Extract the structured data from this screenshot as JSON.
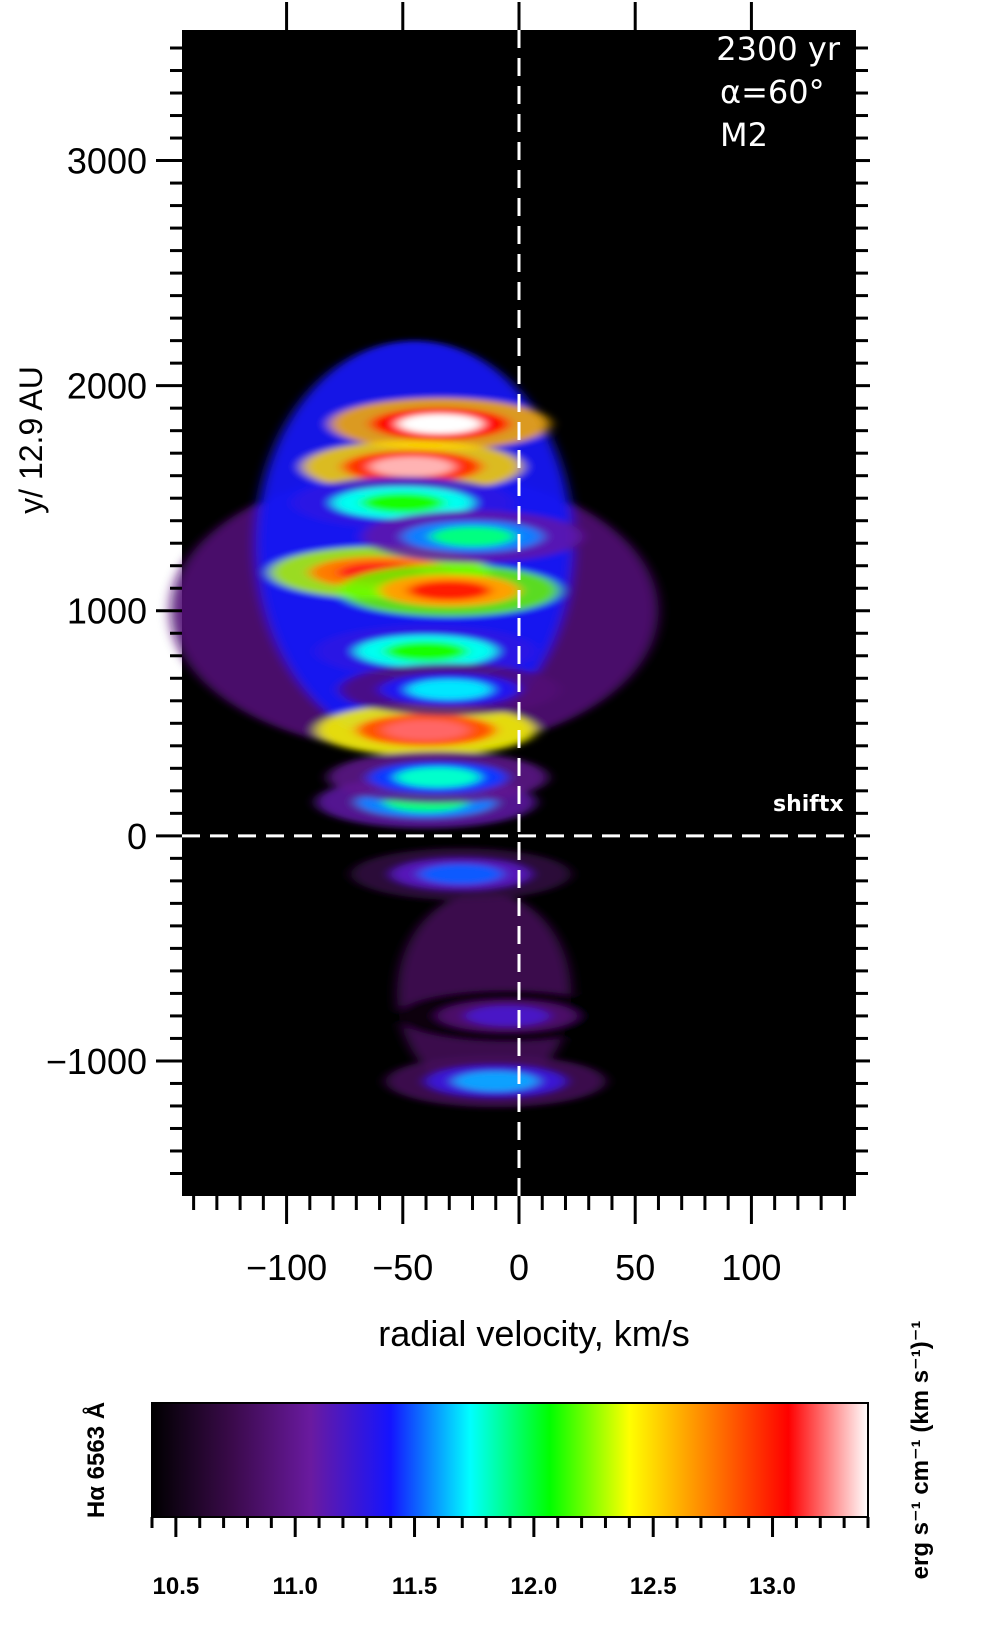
{
  "chart_data": {
    "type": "heatmap",
    "xlabel": "radial velocity, km/s",
    "ylabel": "y/ 12.9 AU",
    "xlim": [
      -145,
      145
    ],
    "ylim": [
      -1600,
      3580
    ],
    "x_ticks": [
      -100,
      -50,
      0,
      50,
      100
    ],
    "x_tick_labels": [
      "−100",
      "−50",
      "0",
      "50",
      "100"
    ],
    "y_ticks": [
      -1000,
      0,
      1000,
      2000,
      3000
    ],
    "y_tick_labels": [
      "−1000",
      "0",
      "1000",
      "2000",
      "3000"
    ],
    "annotations": [
      "2300 yr",
      "α=60°",
      "M2"
    ],
    "reference_line_label": "shiftx",
    "reference_lines": {
      "x": 0,
      "y": 0
    },
    "emission_blobs": [
      {
        "x": -34,
        "y": 1830,
        "level": 13.4
      },
      {
        "x": -46,
        "y": 1640,
        "level": 13.3
      },
      {
        "x": -60,
        "y": 1170,
        "level": 13.1
      },
      {
        "x": -30,
        "y": 1090,
        "level": 13.0
      },
      {
        "x": -40,
        "y": 470,
        "level": 13.2
      },
      {
        "x": -50,
        "y": 1480,
        "level": 12.1
      },
      {
        "x": -40,
        "y": 820,
        "level": 12.1
      },
      {
        "x": -20,
        "y": 1330,
        "level": 11.9
      },
      {
        "x": -40,
        "y": 150,
        "level": 11.9
      },
      {
        "x": -35,
        "y": 260,
        "level": 11.8
      },
      {
        "x": -30,
        "y": 650,
        "level": 11.7
      },
      {
        "x": -25,
        "y": -170,
        "level": 11.5
      },
      {
        "x": -10,
        "y": -1090,
        "level": 11.6
      },
      {
        "x": -5,
        "y": -800,
        "level": 11.2
      }
    ],
    "colorbar": {
      "label": "Hα 6563 Å",
      "units": "erg s⁻¹ cm⁻¹ (km s⁻¹)⁻¹",
      "range": [
        10.4,
        13.4
      ],
      "ticks": [
        10.5,
        11.0,
        11.5,
        12.0,
        12.5,
        13.0
      ],
      "tick_labels": [
        "10.5",
        "11.0",
        "11.5",
        "12.0",
        "12.5",
        "13.0"
      ],
      "colormap": [
        "#000000",
        "#3a0a4a",
        "#6a1aa0",
        "#1414ff",
        "#00ffff",
        "#00ff00",
        "#ffff00",
        "#ff8000",
        "#ff0000",
        "#ffffff"
      ]
    }
  }
}
